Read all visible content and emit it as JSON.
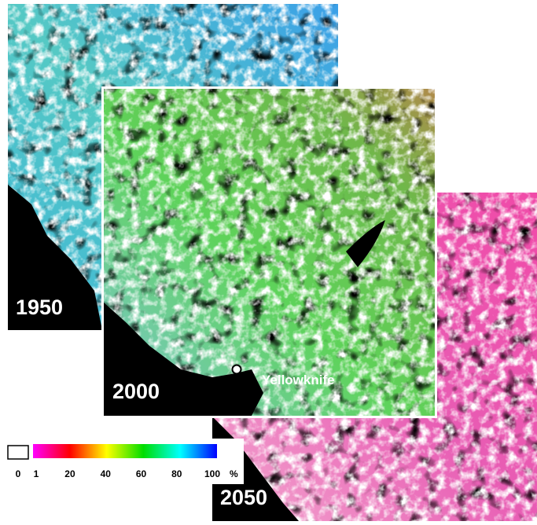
{
  "maps": [
    {
      "year": "1950"
    },
    {
      "year": "2000"
    },
    {
      "year": "2050"
    }
  ],
  "place": {
    "label": "Yellowknife"
  },
  "legend": {
    "empty_label": "0",
    "ticks": [
      1,
      20,
      40,
      60,
      80,
      100
    ],
    "unit": "%"
  }
}
